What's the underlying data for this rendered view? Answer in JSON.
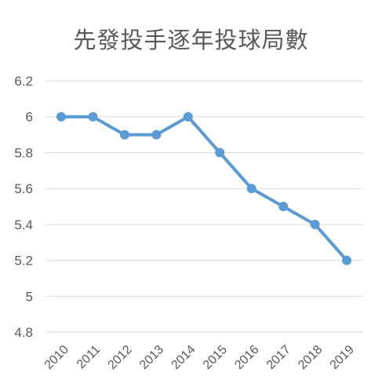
{
  "chart_data": {
    "type": "line",
    "title": "先發投手逐年投球局數",
    "xlabel": "",
    "ylabel": "",
    "categories": [
      "2010",
      "2011",
      "2012",
      "2013",
      "2014",
      "2015",
      "2016",
      "2017",
      "2018",
      "2019"
    ],
    "series": [
      {
        "values": [
          6.0,
          6.0,
          5.9,
          5.9,
          6.0,
          5.8,
          5.6,
          5.5,
          5.4,
          5.2
        ],
        "color": "#5b9bd5"
      }
    ],
    "ylim": [
      4.8,
      6.2
    ],
    "yticks": [
      "4.8",
      "5",
      "5.2",
      "5.4",
      "5.6",
      "5.8",
      "6",
      "6.2"
    ],
    "grid": true,
    "legend": "none",
    "markers": "circle"
  }
}
